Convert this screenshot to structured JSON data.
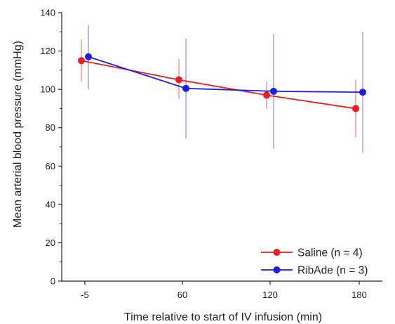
{
  "chart_data": {
    "type": "line",
    "xlabel": "Time relative to start of IV infusion (min)",
    "ylabel": "Mean arterial blood pressure (mmHg)",
    "categories": [
      "-5",
      "60",
      "120",
      "180"
    ],
    "ylim": [
      0,
      140
    ],
    "yticks": [
      0,
      20,
      40,
      60,
      80,
      100,
      120,
      140
    ],
    "grid": false,
    "legend_position": "bottom-right",
    "series": [
      {
        "name": "Saline (n = 4)",
        "color": "#ee1c1c",
        "error_color": "#f7b1b1",
        "values": [
          115,
          105,
          97,
          90
        ],
        "error_low": [
          104,
          95,
          90,
          75
        ],
        "error_high": [
          126,
          116,
          104,
          105
        ]
      },
      {
        "name": "RibAde (n = 3)",
        "color": "#1c1cee",
        "error_color": "#b8b8f4",
        "values": [
          117,
          100.5,
          99,
          98.5
        ],
        "error_low": [
          100,
          74.5,
          69,
          67
        ],
        "error_high": [
          133.5,
          126.5,
          129,
          130
        ]
      }
    ]
  }
}
